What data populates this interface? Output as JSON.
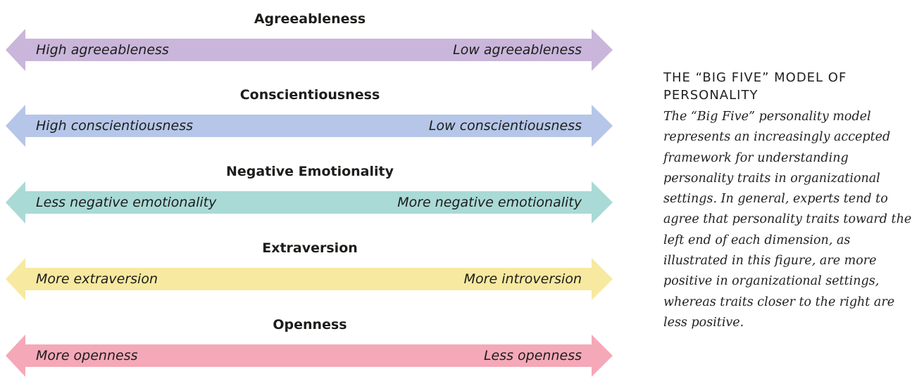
{
  "dimensions": [
    {
      "title": "Agreeableness",
      "left_label": "High agreeableness",
      "right_label": "Low agreeableness",
      "color": "#c9b6da"
    },
    {
      "title": "Conscientiousness",
      "left_label": "High conscientiousness",
      "right_label": "Low conscientiousness",
      "color": "#b5c6e8"
    },
    {
      "title": "Negative Emotionality",
      "left_label": "Less negative emotionality",
      "right_label": "More negative emotionality",
      "color": "#a9dad6"
    },
    {
      "title": "Extraversion",
      "left_label": "More extraversion",
      "right_label": "More introversion",
      "color": "#f7e9a0"
    },
    {
      "title": "Openness",
      "left_label": "More openness",
      "right_label": "Less openness",
      "color": "#f5a8b8"
    }
  ],
  "caption": {
    "title": "THE “BIG FIVE” MODEL OF PERSONALITY",
    "body": "The “Big Five” personality model represents an increasingly accepted framework for understanding personality traits in organizational settings. In general, experts tend to agree that personality traits toward the left end of each dimension, as illustrated in this figure, are more positive in organizational settings, whereas traits closer to the right are less positive."
  }
}
